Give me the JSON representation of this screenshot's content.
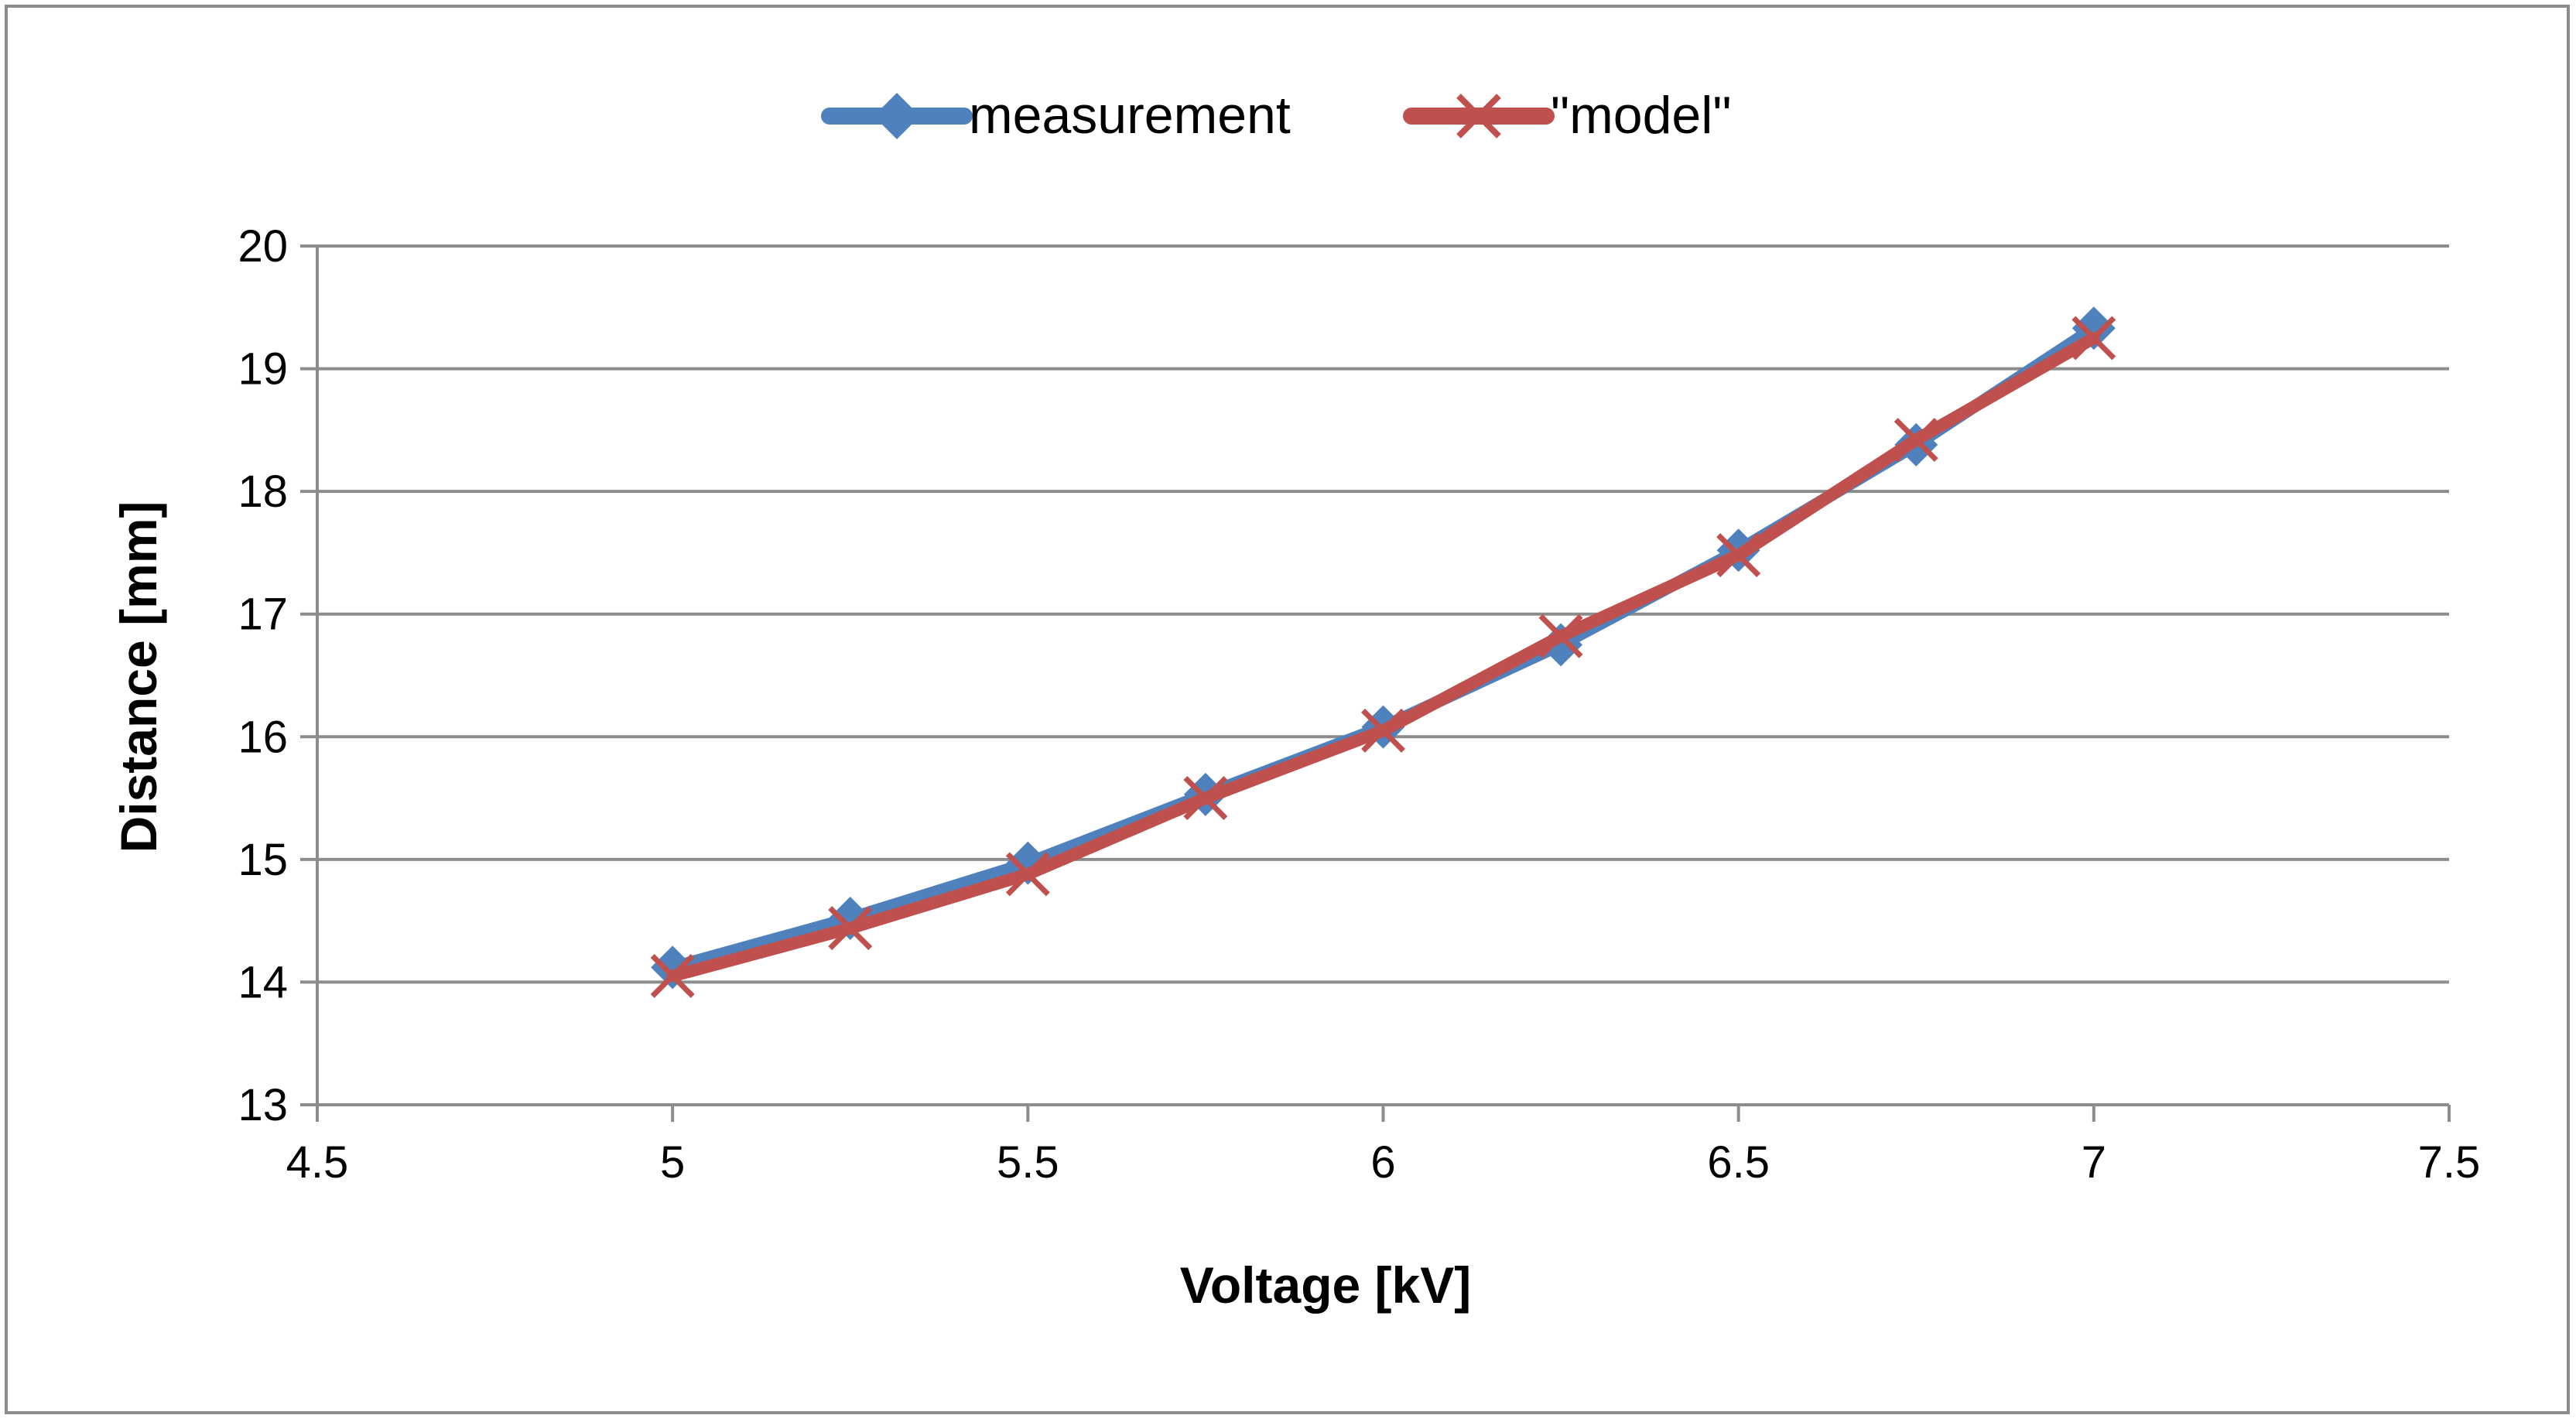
{
  "chart_data": {
    "type": "line",
    "title": "",
    "xlabel": "Voltage [kV]",
    "ylabel": "Distance [mm]",
    "xlim": [
      4.5,
      7.5
    ],
    "ylim": [
      13,
      20
    ],
    "xticks": [
      "4.5",
      "5",
      "5.5",
      "6",
      "6.5",
      "7",
      "7.5"
    ],
    "yticks": [
      "13",
      "14",
      "15",
      "16",
      "17",
      "18",
      "19",
      "20"
    ],
    "grid": "horizontal",
    "legend_position": "top-center",
    "x": [
      5,
      5.25,
      5.5,
      5.75,
      6,
      6.25,
      6.5,
      6.75,
      7
    ],
    "series": [
      {
        "name": "measurement",
        "color": "#4F81BD",
        "marker": "diamond",
        "values": [
          14.12,
          14.52,
          14.97,
          15.53,
          16.08,
          16.75,
          17.52,
          18.38,
          19.33
        ]
      },
      {
        "name": "\"model\"",
        "color": "#C0504D",
        "marker": "x",
        "values": [
          14.05,
          14.44,
          14.88,
          15.5,
          16.05,
          16.82,
          17.48,
          18.42,
          19.25
        ]
      }
    ]
  }
}
